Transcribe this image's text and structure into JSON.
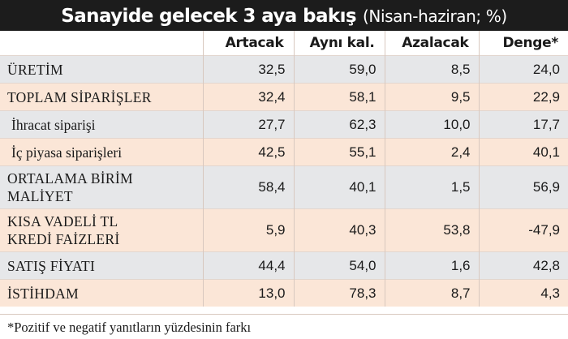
{
  "title": {
    "main": "Sanayide gelecek 3 aya bakış",
    "sub": "(Nisan-haziran; %)"
  },
  "chart_data": {
    "type": "table",
    "title": "Sanayide gelecek 3 aya bakış",
    "subtitle": "(Nisan-haziran; %)",
    "columns": [
      "Artacak",
      "Aynı kal.",
      "Azalacak",
      "Denge*"
    ],
    "rows": [
      {
        "label": [
          "ÜRETİM"
        ],
        "values": [
          "32,5",
          "59,0",
          "8,5",
          "24,0"
        ],
        "shade": "gray",
        "indent": false
      },
      {
        "label": [
          "TOPLAM SİPARİŞLER"
        ],
        "values": [
          "32,4",
          "58,1",
          "9,5",
          "22,9"
        ],
        "shade": "peach",
        "indent": false
      },
      {
        "label": [
          "İhracat siparişi"
        ],
        "values": [
          "27,7",
          "62,3",
          "10,0",
          "17,7"
        ],
        "shade": "gray",
        "indent": true
      },
      {
        "label": [
          "İç piyasa siparişleri"
        ],
        "values": [
          "42,5",
          "55,1",
          "2,4",
          "40,1"
        ],
        "shade": "peach",
        "indent": true
      },
      {
        "label": [
          "ORTALAMA BİRİM",
          "MALİYET"
        ],
        "values": [
          "58,4",
          "40,1",
          "1,5",
          "56,9"
        ],
        "shade": "gray",
        "indent": false
      },
      {
        "label": [
          "KISA VADELİ TL",
          "KREDİ FAİZLERİ"
        ],
        "values": [
          "5,9",
          "40,3",
          "53,8",
          "-47,9"
        ],
        "shade": "peach",
        "indent": false
      },
      {
        "label": [
          "SATIŞ FİYATI"
        ],
        "values": [
          "44,4",
          "54,0",
          "1,6",
          "42,8"
        ],
        "shade": "gray",
        "indent": false
      },
      {
        "label": [
          "İSTİHDAM"
        ],
        "values": [
          "13,0",
          "78,3",
          "8,7",
          "4,3"
        ],
        "shade": "peach",
        "indent": false
      }
    ],
    "footnote": "*Pozitif ve negatif yanıtların yüzdesinin farkı"
  }
}
